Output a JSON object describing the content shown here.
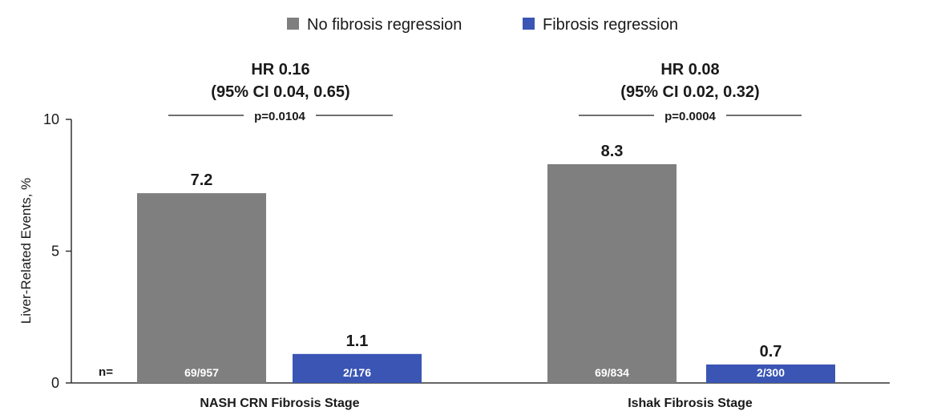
{
  "chart_data": {
    "type": "bar",
    "ylabel": "Liver-Related Events, %",
    "ylim": [
      0,
      10
    ],
    "yticks": [
      0,
      5,
      10
    ],
    "n_label": "n=",
    "colors": {
      "No fibrosis regression": "#7f7f7f",
      "Fibrosis regression": "#3a55b4"
    },
    "series": [
      {
        "name": "No fibrosis regression",
        "values": [
          7.2,
          8.3
        ]
      },
      {
        "name": "Fibrosis regression",
        "values": [
          1.1,
          0.7
        ]
      }
    ],
    "categories": [
      "NASH CRN Fibrosis Stage",
      "Ishak Fibrosis Stage"
    ],
    "groups": [
      {
        "category": "NASH CRN Fibrosis Stage",
        "hr": "HR 0.16",
        "ci": "(95% CI 0.04, 0.65)",
        "p": "p=0.0104",
        "value_labels": [
          "7.2",
          "1.1"
        ],
        "counts": [
          "69/957",
          "2/176"
        ]
      },
      {
        "category": "Ishak Fibrosis Stage",
        "hr": "HR 0.08",
        "ci": "(95% CI 0.02, 0.32)",
        "p": "p=0.0004",
        "value_labels": [
          "8.3",
          "0.7"
        ],
        "counts": [
          "69/834",
          "2/300"
        ]
      }
    ]
  }
}
